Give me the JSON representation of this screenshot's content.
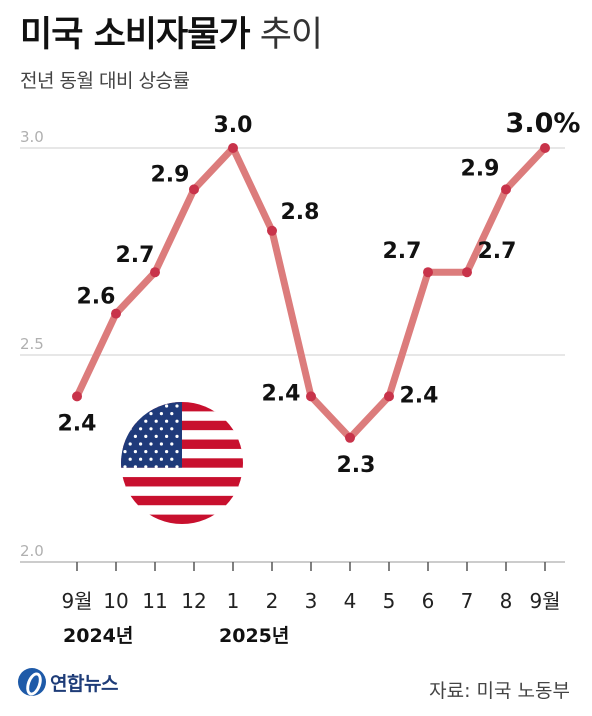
{
  "header": {
    "title_bold": "미국 소비자물가",
    "title_light": "추이",
    "subtitle": "전년 동월 대비 상승률"
  },
  "chart_data": {
    "type": "line",
    "categories": [
      "9월",
      "10",
      "11",
      "12",
      "1",
      "2",
      "3",
      "4",
      "5",
      "6",
      "7",
      "8",
      "9월"
    ],
    "year_labels": [
      "2024년",
      "2025년"
    ],
    "values": [
      2.4,
      2.6,
      2.7,
      2.9,
      3.0,
      2.8,
      2.4,
      2.3,
      2.4,
      2.7,
      2.7,
      2.9,
      3.0
    ],
    "data_labels": [
      "2.4",
      "2.6",
      "2.7",
      "2.9",
      "3.0",
      "2.8",
      "2.4",
      "2.3",
      "2.4",
      "2.7",
      "2.7",
      "2.9",
      "3.0%"
    ],
    "yticks": [
      "3.0",
      "2.5",
      "2.0"
    ],
    "ylim": [
      2.0,
      3.0
    ],
    "grid": true,
    "line_color": "#dc7c7c",
    "point_color": "#c8334a"
  },
  "footer": {
    "logo_text": "연합뉴스",
    "source": "자료: 미국 노동부"
  }
}
